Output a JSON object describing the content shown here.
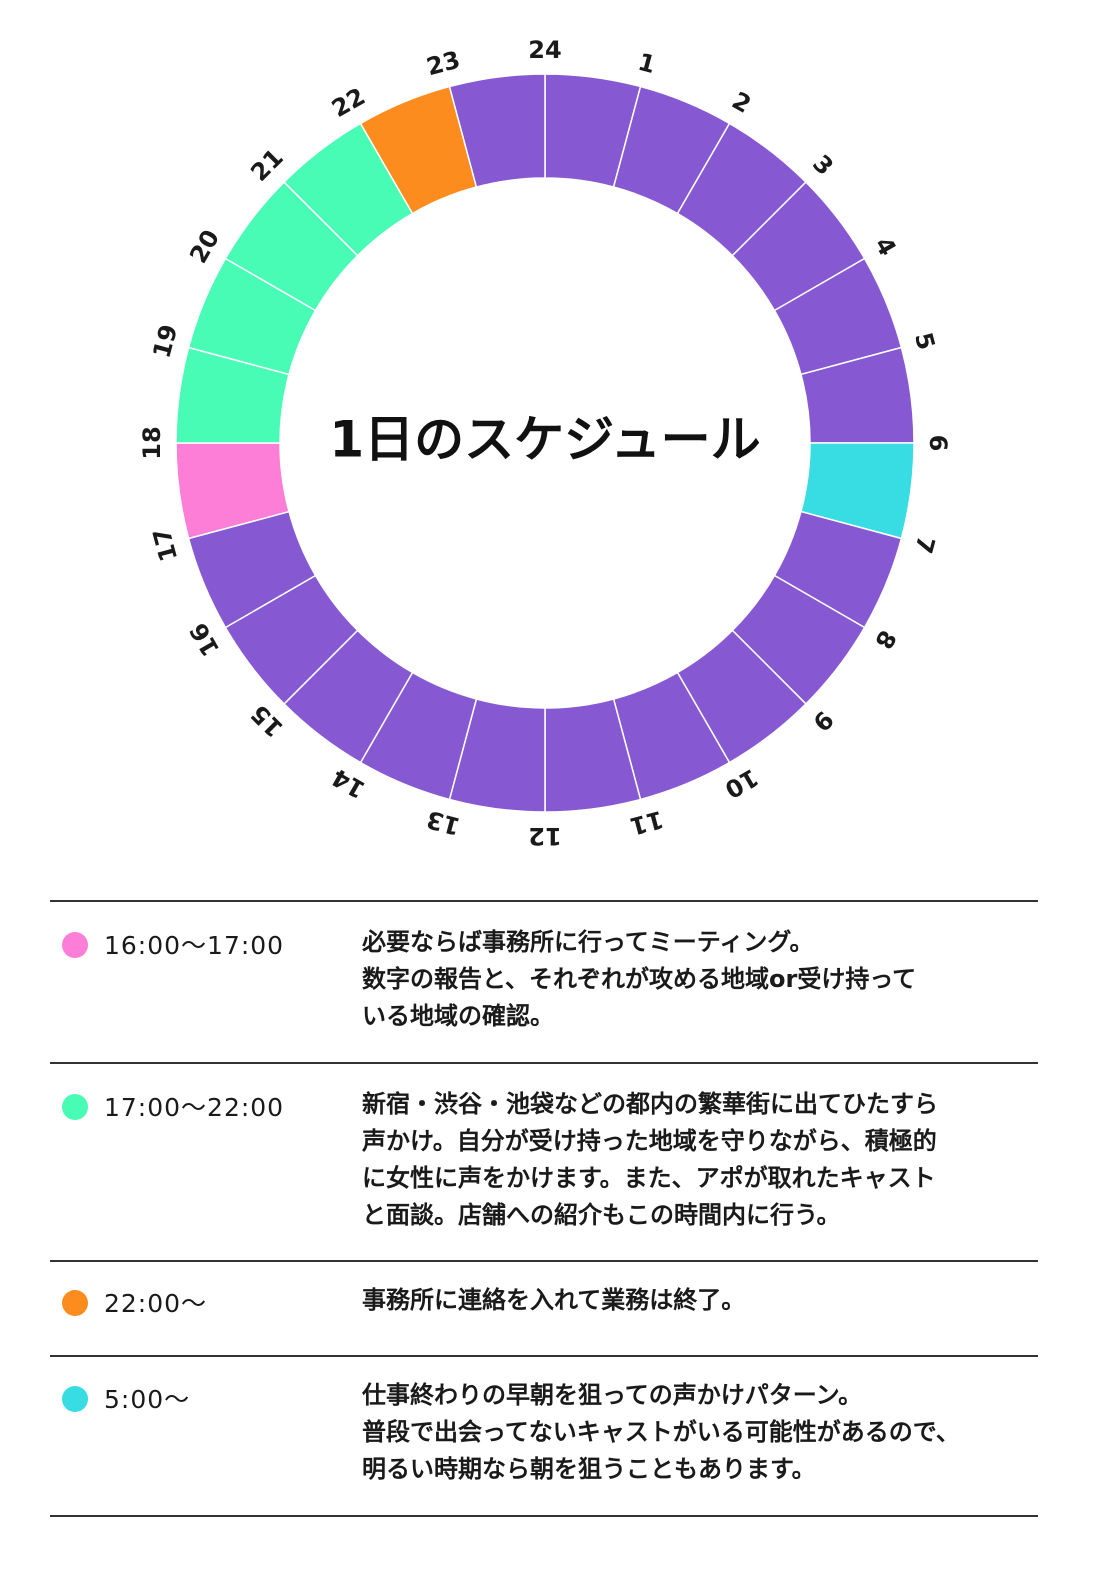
{
  "title": "1日のスケジュール",
  "colors": {
    "purple": "#8659d3",
    "cyan": "#37dde3",
    "pink": "#fd7ed7",
    "green": "#48fcb6",
    "orange": "#fd8c1f"
  },
  "dial": {
    "hours": [
      {
        "label": "24",
        "color": "purple"
      },
      {
        "label": "1",
        "color": "purple"
      },
      {
        "label": "2",
        "color": "purple"
      },
      {
        "label": "3",
        "color": "purple"
      },
      {
        "label": "4",
        "color": "purple"
      },
      {
        "label": "5",
        "color": "purple"
      },
      {
        "label": "6",
        "color": "cyan"
      },
      {
        "label": "7",
        "color": "purple"
      },
      {
        "label": "8",
        "color": "purple"
      },
      {
        "label": "9",
        "color": "purple"
      },
      {
        "label": "10",
        "color": "purple"
      },
      {
        "label": "11",
        "color": "purple"
      },
      {
        "label": "12",
        "color": "purple"
      },
      {
        "label": "13",
        "color": "purple"
      },
      {
        "label": "14",
        "color": "purple"
      },
      {
        "label": "15",
        "color": "purple"
      },
      {
        "label": "16",
        "color": "purple"
      },
      {
        "label": "17",
        "color": "pink"
      },
      {
        "label": "18",
        "color": "green"
      },
      {
        "label": "19",
        "color": "green"
      },
      {
        "label": "20",
        "color": "green"
      },
      {
        "label": "21",
        "color": "green"
      },
      {
        "label": "22",
        "color": "orange"
      },
      {
        "label": "23",
        "color": "purple"
      }
    ]
  },
  "schedule": [
    {
      "time": "16:00〜17:00",
      "color": "#fd7ed7",
      "lines": [
        "必要ならば事務所に行ってミーティング。",
        "数字の報告と、それぞれが攻める地域or受け持って",
        "いる地域の確認。"
      ]
    },
    {
      "time": "17:00〜22:00",
      "color": "#48fcb6",
      "lines": [
        "新宿・渋谷・池袋などの都内の繁華街に出てひたすら",
        "声かけ。自分が受け持った地域を守りながら、積極的",
        "に女性に声をかけます。また、アポが取れたキャスト",
        "と面談。店舗への紹介もこの時間内に行う。"
      ]
    },
    {
      "time": "22:00〜",
      "color": "#fd8c1f",
      "lines": [
        "事務所に連絡を入れて業務は終了。"
      ]
    },
    {
      "time": "5:00〜",
      "color": "#37dde3",
      "lines": [
        "仕事終わりの早朝を狙っての声かけパターン。",
        "普段で出会ってないキャストがいる可能性があるので、",
        "明るい時期なら朝を狙うこともあります。"
      ]
    }
  ]
}
